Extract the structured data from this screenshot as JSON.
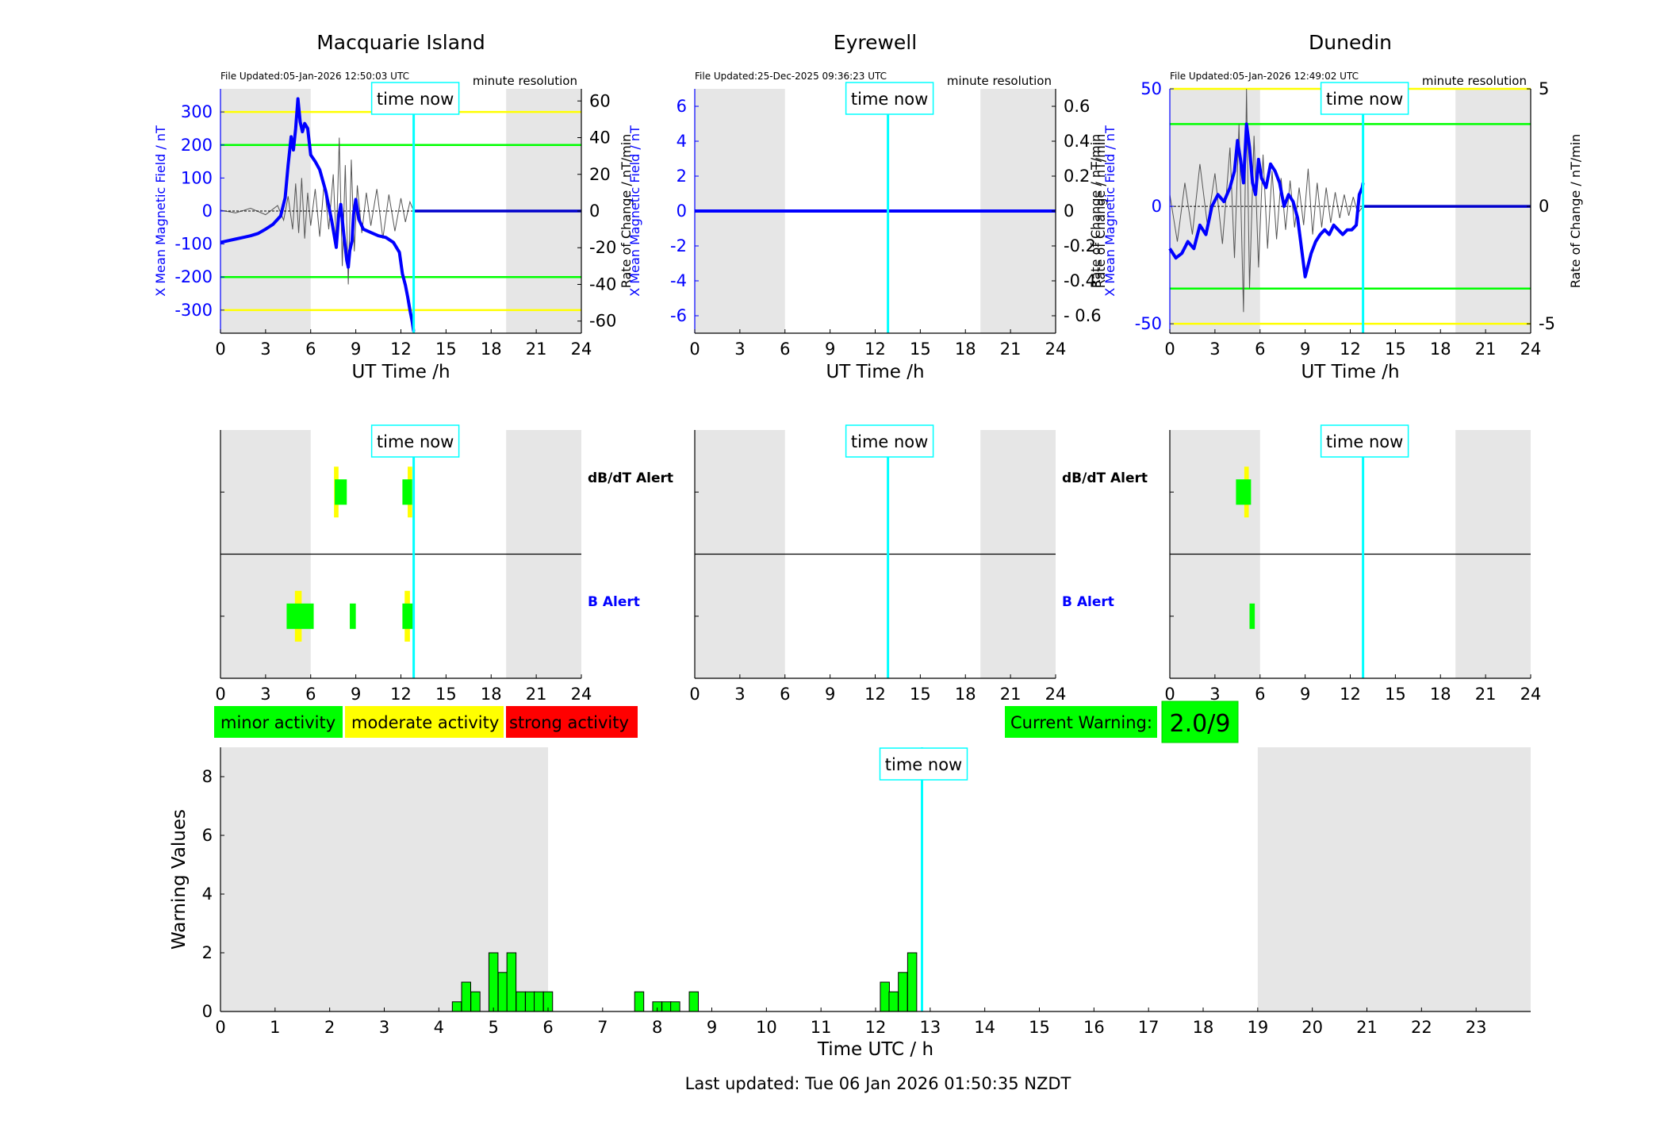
{
  "figure": {
    "footer": "Last updated: Tue 06 Jan 2026 01:50:35 NZDT",
    "time_now_label": "time now",
    "time_now_h": 12.85,
    "colors": {
      "field_line": "#0000ff",
      "rate_line": "#555555",
      "night_shading": "#e6e6e6",
      "time_now_line": "#00ffff",
      "minor": "#00ff00",
      "moderate": "#ffff00",
      "strong": "#ff0000",
      "axis_blue": "#0000ff"
    }
  },
  "legend": {
    "minor": "minor activity",
    "moderate": "moderate activity",
    "strong": "strong activity"
  },
  "current_warning": {
    "label": "Current Warning:",
    "value": "2.0/9"
  },
  "chart_data": [
    {
      "type": "line",
      "station": "Macquarie Island",
      "file_updated": "File Updated:05-Jan-2026 12:50:03 UTC",
      "resolution": "minute resolution",
      "xlabel": "UT Time /h",
      "ylabel_left": "X Mean Magnetic Field / nT",
      "ylabel_right": "Rate of Change / nT/min",
      "xlim": [
        0,
        24
      ],
      "xticks": [
        "0",
        "3",
        "6",
        "9",
        "12",
        "15",
        "18",
        "21",
        "24"
      ],
      "ylim_left": [
        -370,
        370
      ],
      "yticks_left": [
        -300,
        -200,
        -100,
        0,
        100,
        200,
        300
      ],
      "ytick_labels_left": [
        "-300",
        "-200",
        "-100",
        "0",
        "100",
        "200",
        "300"
      ],
      "ylim_right": [
        -66.6,
        66.6
      ],
      "yticks_right": [
        -60,
        -40,
        -20,
        0,
        20,
        40,
        60
      ],
      "ytick_labels_right": [
        "-60",
        "-40",
        "-20",
        "0",
        "20",
        "40",
        "60"
      ],
      "night_bands": [
        [
          0,
          6
        ],
        [
          19,
          24
        ]
      ],
      "thresholds": [
        {
          "value": 300,
          "level": "moderate"
        },
        {
          "value": 200,
          "level": "minor"
        },
        {
          "value": -200,
          "level": "minor"
        },
        {
          "value": -300,
          "level": "moderate"
        }
      ],
      "field_series": {
        "x": [
          0,
          0.5,
          1,
          1.5,
          2,
          2.5,
          3,
          3.5,
          4,
          4.3,
          4.5,
          4.7,
          4.85,
          5,
          5.15,
          5.3,
          5.45,
          5.6,
          5.8,
          6,
          6.3,
          6.6,
          7,
          7.4,
          7.7,
          7.85,
          8.0,
          8.2,
          8.4,
          8.5,
          8.6,
          8.75,
          8.85,
          9.0,
          9.2,
          9.5,
          10,
          10.5,
          11,
          11.5,
          11.9,
          12.1,
          12.3,
          12.45,
          12.6,
          12.75,
          12.85
        ],
        "y": [
          -95,
          -90,
          -85,
          -80,
          -75,
          -68,
          -55,
          -40,
          -15,
          40,
          140,
          225,
          185,
          250,
          340,
          270,
          240,
          265,
          250,
          170,
          150,
          125,
          60,
          -30,
          -110,
          -20,
          20,
          -70,
          -150,
          -170,
          -120,
          -90,
          -10,
          35,
          -25,
          -55,
          -65,
          -75,
          -80,
          -95,
          -125,
          -190,
          -225,
          -260,
          -300,
          -335,
          -365
        ]
      },
      "field_series_after_now": {
        "x": [
          12.85,
          24
        ],
        "y": [
          0,
          0
        ]
      },
      "rate_series": {
        "x": [
          0,
          1,
          2,
          3,
          3.8,
          4.2,
          4.5,
          4.8,
          5.0,
          5.2,
          5.4,
          5.6,
          5.8,
          6.0,
          6.3,
          6.6,
          6.9,
          7.2,
          7.5,
          7.7,
          7.9,
          8.1,
          8.3,
          8.5,
          8.7,
          8.9,
          9.1,
          9.4,
          9.7,
          10.0,
          10.4,
          10.8,
          11.2,
          11.6,
          12.0,
          12.3,
          12.6,
          12.85
        ],
        "y": [
          0.5,
          -1,
          1.5,
          -2,
          3,
          -5,
          8,
          -10,
          15,
          -12,
          18,
          -15,
          10,
          -8,
          12,
          -14,
          16,
          -10,
          20,
          -18,
          40,
          -30,
          25,
          -40,
          28,
          -22,
          14,
          -12,
          10,
          -8,
          12,
          -15,
          9,
          -11,
          7,
          -6,
          5,
          0
        ]
      },
      "y_label_unit_note": ""
    },
    {
      "type": "line",
      "station": "Eyrewell",
      "file_updated": "File Updated:25-Dec-2025 09:36:23 UTC",
      "resolution": "minute resolution",
      "xlabel": "UT Time /h",
      "ylabel_left": "X Mean Magnetic Field / nT",
      "ylabel_right": "Rate of Change / nT/min",
      "xlim": [
        0,
        24
      ],
      "xticks": [
        "0",
        "3",
        "6",
        "9",
        "12",
        "15",
        "18",
        "21",
        "24"
      ],
      "ylim_left": [
        -7,
        7
      ],
      "yticks_left": [
        -6,
        -4,
        -2,
        0,
        2,
        4,
        6
      ],
      "ytick_labels_left": [
        "-6",
        "-4",
        "-2",
        "0",
        "2",
        "4",
        "6"
      ],
      "ylim_right": [
        -0.7,
        0.7
      ],
      "yticks_right": [
        -0.6,
        -0.4,
        -0.2,
        0,
        0.2,
        0.4,
        0.6
      ],
      "ytick_labels_right": [
        "- 0.6",
        "-0.4",
        "-0.2",
        "0",
        "0.2",
        "0.4",
        "0.6"
      ],
      "night_bands": [
        [
          0,
          6
        ],
        [
          19,
          24
        ]
      ],
      "thresholds": [],
      "field_series": {
        "x": [
          0,
          24
        ],
        "y": [
          0,
          0
        ]
      },
      "field_series_after_now": {
        "x": [],
        "y": []
      },
      "rate_series": {
        "x": [],
        "y": []
      }
    },
    {
      "type": "line",
      "station": "Dunedin",
      "file_updated": "File Updated:05-Jan-2026 12:49:02 UTC",
      "resolution": "minute resolution",
      "xlabel": "UT Time /h",
      "ylabel_left": "X Mean Magnetic Field / nT",
      "ylabel_right": "Rate of Change / nT/min",
      "ylabel_left_extra": "Rate of Change / nT/min",
      "xlim": [
        0,
        24
      ],
      "xticks": [
        "0",
        "3",
        "6",
        "9",
        "12",
        "15",
        "18",
        "21",
        "24"
      ],
      "ylim_left": [
        -54,
        50
      ],
      "yticks_left": [
        -50,
        0,
        50
      ],
      "ytick_labels_left": [
        "-50",
        "0",
        "50"
      ],
      "ylim_right": [
        -5.4,
        5.0
      ],
      "yticks_right": [
        -5,
        0,
        5
      ],
      "ytick_labels_right": [
        "-5",
        "0",
        "5"
      ],
      "night_bands": [
        [
          0,
          6
        ],
        [
          19,
          24
        ]
      ],
      "thresholds": [
        {
          "value": 50,
          "level": "moderate"
        },
        {
          "value": 35,
          "level": "minor"
        },
        {
          "value": -35,
          "level": "minor"
        },
        {
          "value": -50,
          "level": "moderate"
        }
      ],
      "field_series": {
        "x": [
          0,
          0.4,
          0.8,
          1.2,
          1.6,
          2.0,
          2.4,
          2.8,
          3.2,
          3.6,
          4.0,
          4.3,
          4.5,
          4.7,
          4.9,
          5.1,
          5.3,
          5.5,
          5.7,
          5.9,
          6.1,
          6.4,
          6.7,
          7.0,
          7.3,
          7.6,
          7.9,
          8.2,
          8.5,
          8.8,
          9.0,
          9.2,
          9.4,
          9.7,
          10.0,
          10.3,
          10.6,
          10.9,
          11.2,
          11.5,
          11.8,
          12.1,
          12.4,
          12.6,
          12.8,
          12.85
        ],
        "y": [
          -18,
          -22,
          -20,
          -15,
          -18,
          -8,
          -12,
          0,
          5,
          2,
          8,
          15,
          28,
          20,
          10,
          35,
          25,
          10,
          5,
          20,
          12,
          8,
          18,
          15,
          10,
          0,
          5,
          2,
          -5,
          -20,
          -30,
          -25,
          -20,
          -15,
          -12,
          -10,
          -12,
          -8,
          -10,
          -12,
          -10,
          -10,
          -8,
          5,
          8,
          10
        ]
      },
      "field_series_after_now": {
        "x": [
          12.85,
          24
        ],
        "y": [
          0,
          0
        ]
      },
      "rate_series": {
        "x": [
          0,
          0.5,
          1,
          1.5,
          2,
          2.5,
          3,
          3.5,
          4,
          4.3,
          4.6,
          4.9,
          5.1,
          5.3,
          5.6,
          5.9,
          6.2,
          6.5,
          6.8,
          7.1,
          7.4,
          7.7,
          8.0,
          8.3,
          8.6,
          8.9,
          9.2,
          9.5,
          9.8,
          10.1,
          10.4,
          10.7,
          11.0,
          11.3,
          11.6,
          11.9,
          12.2,
          12.5,
          12.85
        ],
        "y": [
          0.5,
          -1.5,
          1,
          -1.2,
          1.8,
          -0.8,
          1.4,
          -1.6,
          2.5,
          -2.2,
          3.5,
          -4.5,
          5.0,
          -3.5,
          3.0,
          -2.6,
          2.2,
          -1.8,
          1.5,
          -1.4,
          1.2,
          -1.0,
          1.1,
          -0.9,
          0.8,
          -0.8,
          1.6,
          -1.2,
          1.0,
          -0.9,
          0.8,
          -0.7,
          0.6,
          -0.5,
          0.5,
          -0.4,
          0.4,
          -0.3,
          0
        ]
      }
    }
  ],
  "alert_panels": [
    {
      "station": "Macquarie Island",
      "row_labels": [
        "dB/dT Alert",
        "B Alert"
      ],
      "xticks": [
        "0",
        "3",
        "6",
        "9",
        "12",
        "15",
        "18",
        "21",
        "24"
      ],
      "night_bands": [
        [
          0,
          6
        ],
        [
          19,
          24
        ]
      ],
      "db_dt_blocks": [
        {
          "x0": 7.6,
          "x1": 8.4,
          "level": "minor"
        },
        {
          "x0": 7.55,
          "x1": 7.85,
          "level": "moderate"
        },
        {
          "x0": 12.1,
          "x1": 12.75,
          "level": "minor"
        },
        {
          "x0": 12.45,
          "x1": 12.75,
          "level": "moderate"
        }
      ],
      "b_blocks": [
        {
          "x0": 4.4,
          "x1": 6.2,
          "level": "minor"
        },
        {
          "x0": 4.95,
          "x1": 5.4,
          "level": "moderate"
        },
        {
          "x0": 8.6,
          "x1": 9.0,
          "level": "minor"
        },
        {
          "x0": 12.1,
          "x1": 12.85,
          "level": "minor"
        },
        {
          "x0": 12.25,
          "x1": 12.6,
          "level": "moderate"
        }
      ]
    },
    {
      "station": "Eyrewell",
      "row_labels": [
        "dB/dT Alert",
        "B Alert"
      ],
      "xticks": [
        "0",
        "3",
        "6",
        "9",
        "12",
        "15",
        "18",
        "21",
        "24"
      ],
      "night_bands": [
        [
          0,
          6
        ],
        [
          19,
          24
        ]
      ],
      "db_dt_blocks": [],
      "b_blocks": []
    },
    {
      "station": "Dunedin",
      "row_labels": [],
      "xticks": [
        "0",
        "3",
        "6",
        "9",
        "12",
        "15",
        "18",
        "21",
        "24"
      ],
      "night_bands": [
        [
          0,
          6
        ],
        [
          19,
          24
        ]
      ],
      "db_dt_blocks": [
        {
          "x0": 4.4,
          "x1": 5.4,
          "level": "minor"
        },
        {
          "x0": 4.95,
          "x1": 5.25,
          "level": "moderate"
        }
      ],
      "b_blocks": [
        {
          "x0": 5.3,
          "x1": 5.65,
          "level": "minor"
        }
      ]
    }
  ],
  "warning_chart": {
    "type": "bar",
    "xlabel": "Time UTC / h",
    "ylabel": "Warning Values",
    "xlim": [
      0,
      24
    ],
    "ylim": [
      0,
      9
    ],
    "xticks": [
      "0",
      "1",
      "2",
      "3",
      "4",
      "5",
      "6",
      "7",
      "8",
      "9",
      "10",
      "11",
      "12",
      "13",
      "14",
      "15",
      "16",
      "17",
      "18",
      "19",
      "20",
      "21",
      "22",
      "23"
    ],
    "yticks": [
      0,
      2,
      4,
      6,
      8
    ],
    "ytick_labels": [
      "0",
      "2",
      "4",
      "6",
      "8"
    ],
    "night_bands": [
      [
        0,
        6
      ],
      [
        19,
        24
      ]
    ],
    "bar_width_h": 0.1667,
    "bars": {
      "x": [
        4.33,
        4.5,
        4.67,
        5.0,
        5.17,
        5.33,
        5.5,
        5.67,
        5.83,
        6.0,
        7.67,
        8.0,
        8.17,
        8.33,
        8.67,
        12.17,
        12.33,
        12.5,
        12.67
      ],
      "y": [
        0.33,
        1.0,
        0.67,
        2.0,
        1.33,
        2.0,
        0.67,
        0.67,
        0.67,
        0.67,
        0.67,
        0.33,
        0.33,
        0.33,
        0.67,
        1.0,
        0.67,
        1.33,
        2.0
      ]
    }
  }
}
